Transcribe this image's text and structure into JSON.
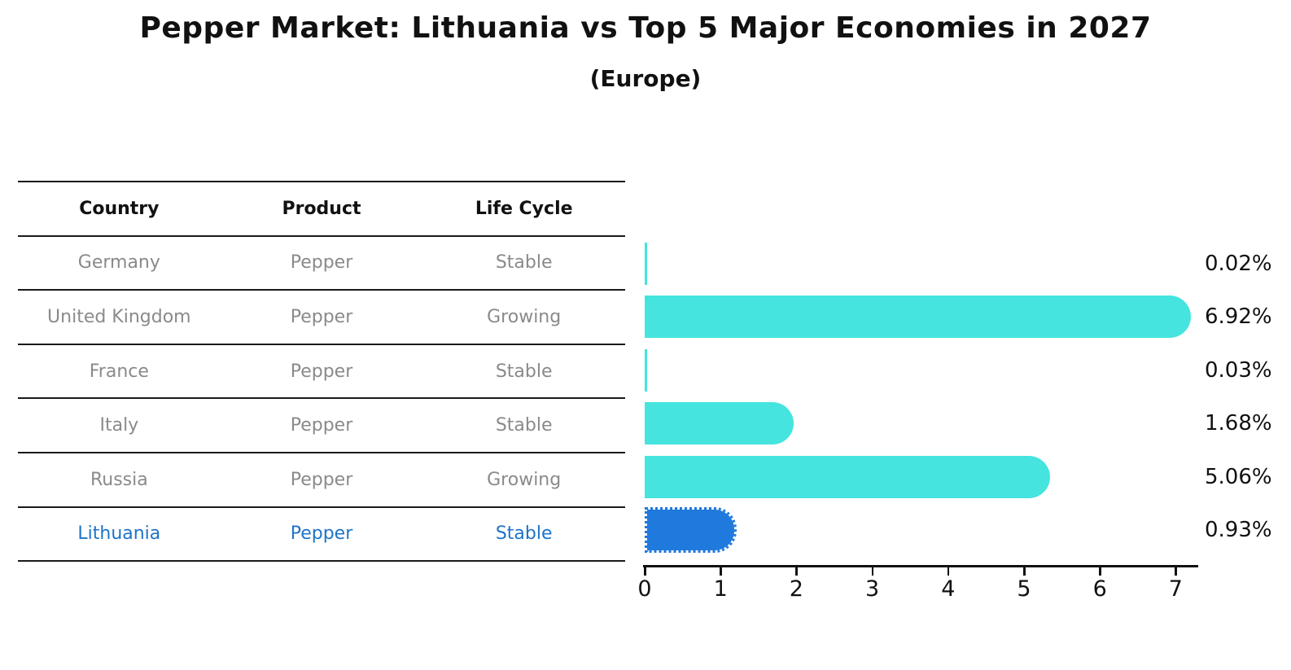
{
  "title": "Pepper Market: Lithuania vs Top 5 Major Economies in 2027",
  "subtitle": "(Europe)",
  "table": {
    "headers": [
      "Country",
      "Product",
      "Life Cycle"
    ],
    "rows": [
      {
        "country": "Germany",
        "product": "Pepper",
        "life_cycle": "Stable",
        "highlight": false
      },
      {
        "country": "United Kingdom",
        "product": "Pepper",
        "life_cycle": "Growing",
        "highlight": false
      },
      {
        "country": "France",
        "product": "Pepper",
        "life_cycle": "Stable",
        "highlight": false
      },
      {
        "country": "Italy",
        "product": "Pepper",
        "life_cycle": "Stable",
        "highlight": false
      },
      {
        "country": "Russia",
        "product": "Pepper",
        "life_cycle": "Growing",
        "highlight": false
      },
      {
        "country": "Lithuania",
        "product": "Pepper",
        "life_cycle": "Stable",
        "highlight": true
      }
    ]
  },
  "chart_data": {
    "type": "bar",
    "orientation": "horizontal",
    "categories": [
      "Germany",
      "United Kingdom",
      "France",
      "Italy",
      "Russia",
      "Lithuania"
    ],
    "values": [
      0.02,
      6.92,
      0.03,
      1.68,
      5.06,
      0.93
    ],
    "value_labels": [
      "0.02%",
      "6.92%",
      "0.03%",
      "1.68%",
      "5.06%",
      "0.93%"
    ],
    "xlim": [
      0,
      7
    ],
    "x_ticks": [
      "0",
      "1",
      "2",
      "3",
      "4",
      "5",
      "6",
      "7"
    ],
    "grid": false,
    "legend": "none",
    "highlight_index": 5,
    "bar_color": "#45E4DF",
    "highlight_bar_color": "#2079DC",
    "highlight_text_color": "#1E74C8"
  },
  "colors": {
    "bar": "#45E4DF",
    "highlight_bar": "#2079DC",
    "highlight_text": "#1E74C8",
    "table_text": "#8a8a8a",
    "ink": "#111111"
  }
}
